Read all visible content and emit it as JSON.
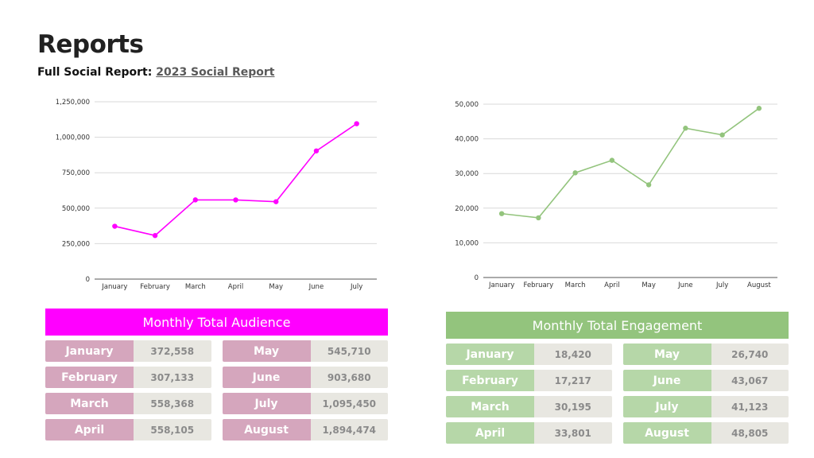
{
  "header": {
    "title": "Reports",
    "subtitle_label": "Full Social Report:",
    "subtitle_link": "2023 Social Report"
  },
  "colors": {
    "audience_accent": "#ff00ff",
    "audience_month_cell": "#d5a6bd",
    "engagement_accent": "#93c47d",
    "engagement_month_cell": "#b6d7a8",
    "value_cell": "#e8e7e1"
  },
  "chart_data": [
    {
      "type": "line",
      "title": "",
      "xlabel": "",
      "ylabel": "",
      "categories": [
        "January",
        "February",
        "March",
        "April",
        "May",
        "June",
        "July"
      ],
      "series": [
        {
          "name": "Monthly Total Audience",
          "values": [
            372558,
            307133,
            558368,
            558105,
            545710,
            903680,
            1095450
          ],
          "color": "#ff00ff"
        }
      ],
      "ylim": [
        0,
        1250000
      ],
      "yticks": [
        0,
        250000,
        500000,
        750000,
        1000000,
        1250000
      ],
      "ytick_labels": [
        "0",
        "250,000",
        "500,000",
        "750,000",
        "1,000,000",
        "1,250,000"
      ],
      "grid": true,
      "legend": "none"
    },
    {
      "type": "line",
      "title": "",
      "xlabel": "",
      "ylabel": "",
      "categories": [
        "January",
        "February",
        "March",
        "April",
        "May",
        "June",
        "July",
        "August"
      ],
      "series": [
        {
          "name": "Monthly Total Engagement",
          "values": [
            18420,
            17217,
            30195,
            33801,
            26740,
            43067,
            41123,
            48805
          ],
          "color": "#93c47d"
        }
      ],
      "ylim": [
        0,
        50000
      ],
      "yticks": [
        0,
        10000,
        20000,
        30000,
        40000,
        50000
      ],
      "ytick_labels": [
        "0",
        "10,000",
        "20,000",
        "30,000",
        "40,000",
        "50,000"
      ],
      "grid": true,
      "legend": "none"
    }
  ],
  "audience_table": {
    "title": "Monthly Total Audience",
    "rows": [
      {
        "month": "January",
        "value": "372,558"
      },
      {
        "month": "May",
        "value": "545,710"
      },
      {
        "month": "February",
        "value": "307,133"
      },
      {
        "month": "June",
        "value": "903,680"
      },
      {
        "month": "March",
        "value": "558,368"
      },
      {
        "month": "July",
        "value": "1,095,450"
      },
      {
        "month": "April",
        "value": "558,105"
      },
      {
        "month": "August",
        "value": "1,894,474"
      }
    ]
  },
  "engagement_table": {
    "title": "Monthly Total Engagement",
    "rows": [
      {
        "month": "January",
        "value": "18,420"
      },
      {
        "month": "May",
        "value": "26,740"
      },
      {
        "month": "February",
        "value": "17,217"
      },
      {
        "month": "June",
        "value": "43,067"
      },
      {
        "month": "March",
        "value": "30,195"
      },
      {
        "month": "July",
        "value": "41,123"
      },
      {
        "month": "April",
        "value": "33,801"
      },
      {
        "month": "August",
        "value": "48,805"
      }
    ]
  }
}
